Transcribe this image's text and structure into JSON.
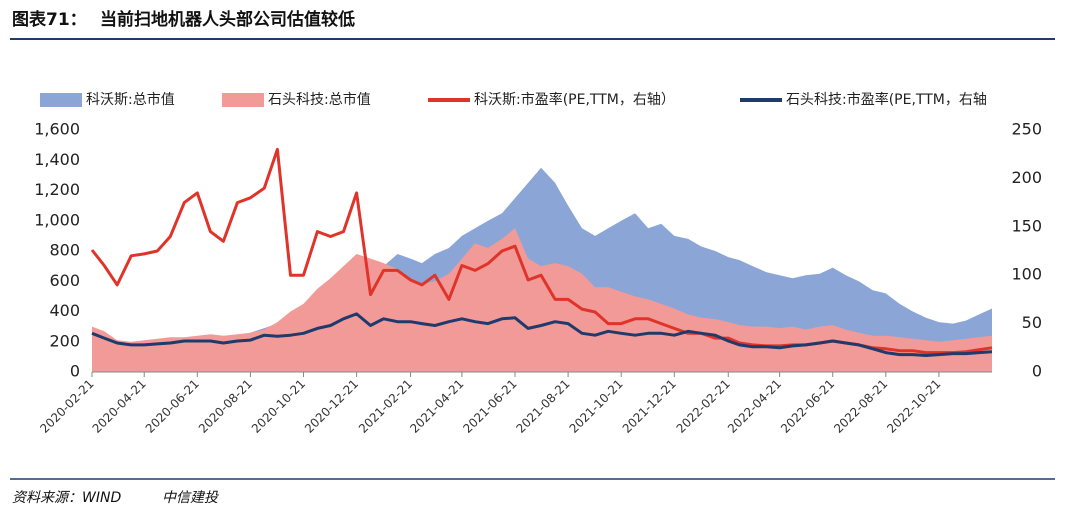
{
  "chart_data": {
    "type": "combo",
    "figure_label": "图表71：",
    "title": "当前扫地机器人头部公司估值较低",
    "source": "资料来源：WIND",
    "publisher": "中信建投",
    "x": [
      "2020-02-21",
      "2020-03-06",
      "2020-03-21",
      "2020-04-06",
      "2020-04-21",
      "2020-05-06",
      "2020-05-21",
      "2020-06-06",
      "2020-06-21",
      "2020-07-06",
      "2020-07-21",
      "2020-08-06",
      "2020-08-21",
      "2020-09-06",
      "2020-09-21",
      "2020-10-06",
      "2020-10-21",
      "2020-11-06",
      "2020-11-21",
      "2020-12-06",
      "2020-12-21",
      "2021-01-06",
      "2021-01-21",
      "2021-02-06",
      "2021-02-21",
      "2021-03-06",
      "2021-03-21",
      "2021-04-06",
      "2021-04-21",
      "2021-05-06",
      "2021-05-21",
      "2021-06-06",
      "2021-06-21",
      "2021-07-06",
      "2021-07-21",
      "2021-08-06",
      "2021-08-21",
      "2021-09-06",
      "2021-09-21",
      "2021-10-06",
      "2021-10-21",
      "2021-11-06",
      "2021-11-21",
      "2021-12-06",
      "2021-12-21",
      "2022-01-06",
      "2022-01-21",
      "2022-02-06",
      "2022-02-21",
      "2022-03-06",
      "2022-03-21",
      "2022-04-06",
      "2022-04-21",
      "2022-05-06",
      "2022-05-21",
      "2022-06-06",
      "2022-06-21",
      "2022-07-06",
      "2022-07-21",
      "2022-08-06",
      "2022-08-21",
      "2022-09-06",
      "2022-09-21",
      "2022-10-06",
      "2022-10-21",
      "2022-11-06",
      "2022-11-21",
      "2022-12-06",
      "2022-12-21"
    ],
    "series": [
      {
        "name": "科沃斯:总市值",
        "kind": "area",
        "axis": "y",
        "color": "#8ba6d6",
        "values": [
          170,
          160,
          140,
          145,
          150,
          160,
          170,
          185,
          200,
          215,
          210,
          230,
          260,
          290,
          320,
          330,
          340,
          380,
          430,
          500,
          560,
          650,
          700,
          780,
          750,
          720,
          780,
          820,
          900,
          950,
          1000,
          1050,
          1150,
          1250,
          1350,
          1250,
          1100,
          950,
          900,
          950,
          1000,
          1050,
          950,
          980,
          900,
          880,
          830,
          800,
          760,
          740,
          700,
          660,
          640,
          620,
          640,
          650,
          690,
          640,
          600,
          540,
          520,
          450,
          400,
          360,
          330,
          320,
          340,
          380,
          420
        ]
      },
      {
        "name": "石头科技:总市值",
        "kind": "area",
        "axis": "y",
        "color": "#f29a97",
        "values": [
          300,
          270,
          210,
          200,
          210,
          220,
          230,
          230,
          240,
          250,
          240,
          250,
          260,
          280,
          330,
          400,
          450,
          550,
          620,
          700,
          780,
          750,
          720,
          680,
          620,
          580,
          600,
          650,
          750,
          850,
          820,
          880,
          950,
          750,
          700,
          720,
          700,
          650,
          560,
          560,
          530,
          500,
          480,
          450,
          420,
          380,
          360,
          350,
          330,
          310,
          300,
          300,
          290,
          300,
          280,
          300,
          310,
          280,
          260,
          240,
          240,
          230,
          220,
          210,
          200,
          210,
          220,
          230,
          240
        ]
      },
      {
        "name": "科沃斯:市盈率(PE,TTM，右轴）",
        "kind": "line",
        "axis": "y2",
        "color": "#e0342a",
        "values": [
          126,
          110,
          90,
          120,
          122,
          125,
          140,
          175,
          185,
          145,
          135,
          175,
          180,
          190,
          230,
          100,
          100,
          145,
          140,
          145,
          185,
          80,
          105,
          105,
          95,
          90,
          100,
          75,
          110,
          105,
          112,
          125,
          130,
          95,
          100,
          75,
          75,
          65,
          62,
          50,
          50,
          55,
          55,
          50,
          45,
          40,
          40,
          35,
          35,
          30,
          28,
          27,
          27,
          28,
          28,
          30,
          32,
          30,
          28,
          25,
          24,
          22,
          22,
          20,
          20,
          20,
          21,
          23,
          25
        ]
      },
      {
        "name": "石头科技:市盈率(PE,TTM，右轴",
        "kind": "line",
        "axis": "y2",
        "color": "#1f3a6d",
        "values": [
          40,
          35,
          30,
          28,
          28,
          29,
          30,
          32,
          32,
          32,
          30,
          32,
          33,
          38,
          37,
          38,
          40,
          45,
          48,
          55,
          60,
          48,
          55,
          52,
          52,
          50,
          48,
          52,
          55,
          52,
          50,
          55,
          56,
          45,
          48,
          52,
          50,
          40,
          38,
          42,
          40,
          38,
          40,
          40,
          38,
          42,
          40,
          38,
          32,
          28,
          26,
          26,
          25,
          27,
          28,
          30,
          32,
          30,
          28,
          24,
          20,
          18,
          18,
          17,
          18,
          19,
          19,
          20,
          21
        ]
      }
    ],
    "xlim": [
      "2020-02-21",
      "2022-12-21"
    ],
    "xticks": [
      "2020-02-21",
      "2020-04-21",
      "2020-06-21",
      "2020-08-21",
      "2020-10-21",
      "2020-12-21",
      "2021-02-21",
      "2021-04-21",
      "2021-06-21",
      "2021-08-21",
      "2021-10-21",
      "2021-12-21",
      "2022-02-21",
      "2022-04-21",
      "2022-06-21",
      "2022-08-21",
      "2022-10-21"
    ],
    "ylim": [
      0,
      1600
    ],
    "yticks": [
      0,
      200,
      400,
      600,
      800,
      {
        "value": 1000,
        "label": "1,000"
      },
      {
        "value": 1200,
        "label": "1,200"
      },
      {
        "value": 1400,
        "label": "1,400"
      },
      {
        "value": 1600,
        "label": "1,600"
      }
    ],
    "y2lim": [
      0,
      250
    ],
    "y2ticks": [
      0,
      50,
      100,
      150,
      200,
      250
    ],
    "legend": "top"
  }
}
